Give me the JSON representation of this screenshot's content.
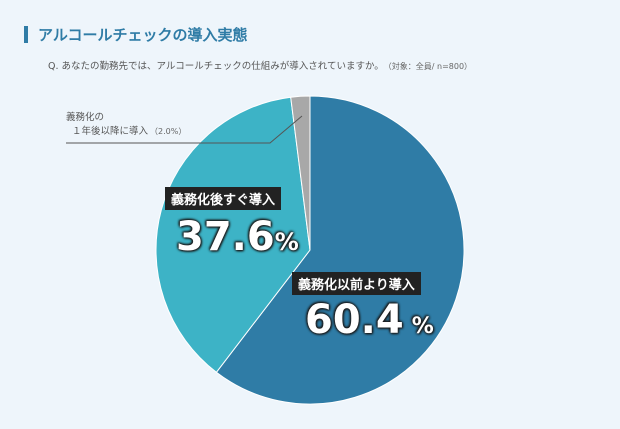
{
  "header": {
    "title": "アルコールチェックの導入実態"
  },
  "question": {
    "text": "Q. あなたの勤務先では、アルコールチェックの仕組みが導入されていますか。",
    "note": "（対象：全員/ n=800）"
  },
  "colors": {
    "accent": "#2f7ca6",
    "before": "#2f7ca6",
    "after": "#3db3c6",
    "later": "#a8a8a8"
  },
  "chart_data": {
    "type": "pie",
    "title": "アルコールチェックの導入実態",
    "slices": [
      {
        "label": "義務化以前より導入",
        "value": 60.4,
        "display": "60.4",
        "unit": "%"
      },
      {
        "label": "義務化後すぐ導入",
        "value": 37.6,
        "display": "37.6",
        "unit": "%"
      },
      {
        "label_line1": "義務化の",
        "label_line2": "１年後以降に導入",
        "value": 2.0,
        "display": "（2.0%）"
      }
    ]
  }
}
